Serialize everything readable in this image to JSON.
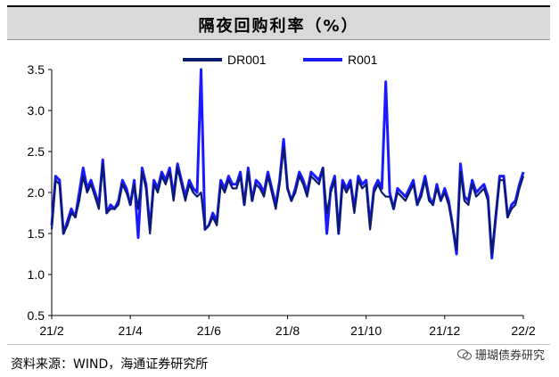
{
  "title": "隔夜回购利率（%）",
  "source": "资料来源：WIND，海通证券研究所",
  "watermark": "珊瑚债券研究",
  "colors": {
    "DR001": "#0a1a6e",
    "R001": "#1a1aff",
    "axis": "#000000",
    "title_bg": "#d9d9d9"
  },
  "chart_data": {
    "type": "line",
    "title": "隔夜回购利率（%）",
    "xlabel": "",
    "ylabel": "",
    "ylim": [
      0.5,
      3.5
    ],
    "yticks": [
      0.5,
      1.0,
      1.5,
      2.0,
      2.5,
      3.0,
      3.5
    ],
    "ytick_labels": [
      "0.5",
      "1.0",
      "1.5",
      "2.0",
      "2.5",
      "3.0",
      "3.5"
    ],
    "xlim": [
      0,
      12
    ],
    "xticks": [
      0,
      2,
      4,
      6,
      8,
      10,
      12
    ],
    "xtick_labels": [
      "21/2",
      "21/4",
      "21/6",
      "21/8",
      "21/10",
      "21/12",
      "22/2"
    ],
    "legend": "top-center",
    "grid": false,
    "series": [
      {
        "name": "DR001",
        "x": [
          0.0,
          0.1,
          0.2,
          0.3,
          0.4,
          0.5,
          0.6,
          0.7,
          0.8,
          0.9,
          1.0,
          1.1,
          1.2,
          1.3,
          1.4,
          1.5,
          1.6,
          1.7,
          1.8,
          1.9,
          2.0,
          2.1,
          2.2,
          2.3,
          2.4,
          2.5,
          2.6,
          2.7,
          2.8,
          2.9,
          3.0,
          3.1,
          3.2,
          3.3,
          3.4,
          3.5,
          3.6,
          3.7,
          3.8,
          3.9,
          4.0,
          4.1,
          4.2,
          4.3,
          4.4,
          4.5,
          4.6,
          4.7,
          4.8,
          4.9,
          5.0,
          5.1,
          5.2,
          5.3,
          5.4,
          5.5,
          5.6,
          5.7,
          5.8,
          5.9,
          6.0,
          6.1,
          6.2,
          6.3,
          6.4,
          6.5,
          6.6,
          6.7,
          6.8,
          6.9,
          7.0,
          7.1,
          7.2,
          7.3,
          7.4,
          7.5,
          7.6,
          7.7,
          7.8,
          7.9,
          8.0,
          8.1,
          8.2,
          8.3,
          8.4,
          8.5,
          8.6,
          8.7,
          8.8,
          8.9,
          9.0,
          9.1,
          9.2,
          9.3,
          9.4,
          9.5,
          9.6,
          9.7,
          9.8,
          9.9,
          10.0,
          10.1,
          10.2,
          10.3,
          10.4,
          10.5,
          10.6,
          10.7,
          10.8,
          10.9,
          11.0,
          11.1,
          11.2,
          11.3,
          11.4,
          11.5,
          11.6,
          11.7,
          11.8,
          11.9,
          12.0
        ],
        "values": [
          1.55,
          2.15,
          2.1,
          1.5,
          1.6,
          1.75,
          1.7,
          1.9,
          2.2,
          2.0,
          2.1,
          1.95,
          1.8,
          2.35,
          1.75,
          1.8,
          1.8,
          1.85,
          2.1,
          2.0,
          1.85,
          2.1,
          1.8,
          2.25,
          2.05,
          1.5,
          2.1,
          2.0,
          2.2,
          2.1,
          2.25,
          1.9,
          2.3,
          2.1,
          1.9,
          2.1,
          2.0,
          1.95,
          2.0,
          1.55,
          1.6,
          1.7,
          1.6,
          2.1,
          2.0,
          2.15,
          2.05,
          2.05,
          2.2,
          1.85,
          2.25,
          1.9,
          2.1,
          2.05,
          1.95,
          2.2,
          2.0,
          1.8,
          2.1,
          2.55,
          2.05,
          1.9,
          2.0,
          2.2,
          2.1,
          1.95,
          2.2,
          2.15,
          2.1,
          2.3,
          1.75,
          2.0,
          2.15,
          1.5,
          2.1,
          2.0,
          2.1,
          1.75,
          2.15,
          2.05,
          2.1,
          1.55,
          2.0,
          2.1,
          2.0,
          1.95,
          1.95,
          1.8,
          2.0,
          1.95,
          1.9,
          2.0,
          2.1,
          1.85,
          1.95,
          2.15,
          1.9,
          1.85,
          2.05,
          1.9,
          2.0,
          1.85,
          1.6,
          1.3,
          2.25,
          1.9,
          1.85,
          2.1,
          1.95,
          2.0,
          2.05,
          1.9,
          1.25,
          1.75,
          2.15,
          2.15,
          1.7,
          1.8,
          1.85,
          2.05,
          2.2
        ],
        "color": "#0a1a6e"
      },
      {
        "name": "R001",
        "x": [
          0.0,
          0.1,
          0.2,
          0.3,
          0.4,
          0.5,
          0.6,
          0.7,
          0.8,
          0.9,
          1.0,
          1.1,
          1.2,
          1.3,
          1.4,
          1.5,
          1.6,
          1.7,
          1.8,
          1.9,
          2.0,
          2.1,
          2.2,
          2.3,
          2.4,
          2.5,
          2.6,
          2.7,
          2.8,
          2.9,
          3.0,
          3.1,
          3.2,
          3.3,
          3.4,
          3.5,
          3.6,
          3.7,
          3.8,
          3.9,
          4.0,
          4.1,
          4.2,
          4.3,
          4.4,
          4.5,
          4.6,
          4.7,
          4.8,
          4.9,
          5.0,
          5.1,
          5.2,
          5.3,
          5.4,
          5.5,
          5.6,
          5.7,
          5.8,
          5.9,
          6.0,
          6.1,
          6.2,
          6.3,
          6.4,
          6.5,
          6.6,
          6.7,
          6.8,
          6.9,
          7.0,
          7.1,
          7.2,
          7.3,
          7.4,
          7.5,
          7.6,
          7.7,
          7.8,
          7.9,
          8.0,
          8.1,
          8.2,
          8.3,
          8.4,
          8.5,
          8.6,
          8.7,
          8.8,
          8.9,
          9.0,
          9.1,
          9.2,
          9.3,
          9.4,
          9.5,
          9.6,
          9.7,
          9.8,
          9.9,
          10.0,
          10.1,
          10.2,
          10.3,
          10.4,
          10.5,
          10.6,
          10.7,
          10.8,
          10.9,
          11.0,
          11.1,
          11.2,
          11.3,
          11.4,
          11.5,
          11.6,
          11.7,
          11.8,
          11.9,
          12.0
        ],
        "values": [
          1.6,
          2.2,
          2.15,
          1.5,
          1.65,
          1.8,
          1.7,
          2.0,
          2.3,
          2.05,
          2.15,
          2.0,
          1.85,
          2.4,
          1.75,
          1.85,
          1.8,
          1.9,
          2.15,
          2.05,
          1.85,
          2.15,
          1.45,
          2.3,
          2.1,
          1.55,
          2.15,
          2.05,
          2.25,
          2.15,
          2.3,
          1.95,
          2.35,
          2.15,
          1.95,
          2.15,
          2.05,
          2.0,
          3.5,
          1.55,
          1.6,
          1.75,
          1.65,
          2.15,
          2.05,
          2.2,
          2.1,
          2.1,
          2.25,
          1.85,
          2.3,
          1.9,
          2.15,
          2.1,
          2.0,
          2.25,
          2.05,
          1.85,
          2.15,
          2.65,
          2.05,
          1.9,
          2.05,
          2.25,
          2.15,
          2.0,
          2.25,
          2.2,
          2.15,
          2.3,
          1.5,
          2.05,
          2.2,
          1.5,
          2.15,
          2.05,
          2.15,
          1.8,
          2.2,
          2.1,
          2.15,
          1.6,
          2.05,
          2.15,
          2.05,
          3.35,
          2.0,
          1.8,
          2.05,
          2.0,
          1.95,
          2.05,
          2.15,
          1.85,
          2.0,
          2.2,
          1.95,
          1.85,
          2.1,
          1.9,
          2.05,
          1.9,
          1.6,
          1.25,
          2.35,
          1.95,
          1.9,
          2.15,
          2.0,
          2.05,
          2.1,
          1.95,
          1.2,
          1.7,
          2.2,
          2.2,
          1.7,
          1.85,
          1.9,
          2.1,
          2.25
        ],
        "color": "#1a1aff"
      }
    ]
  }
}
